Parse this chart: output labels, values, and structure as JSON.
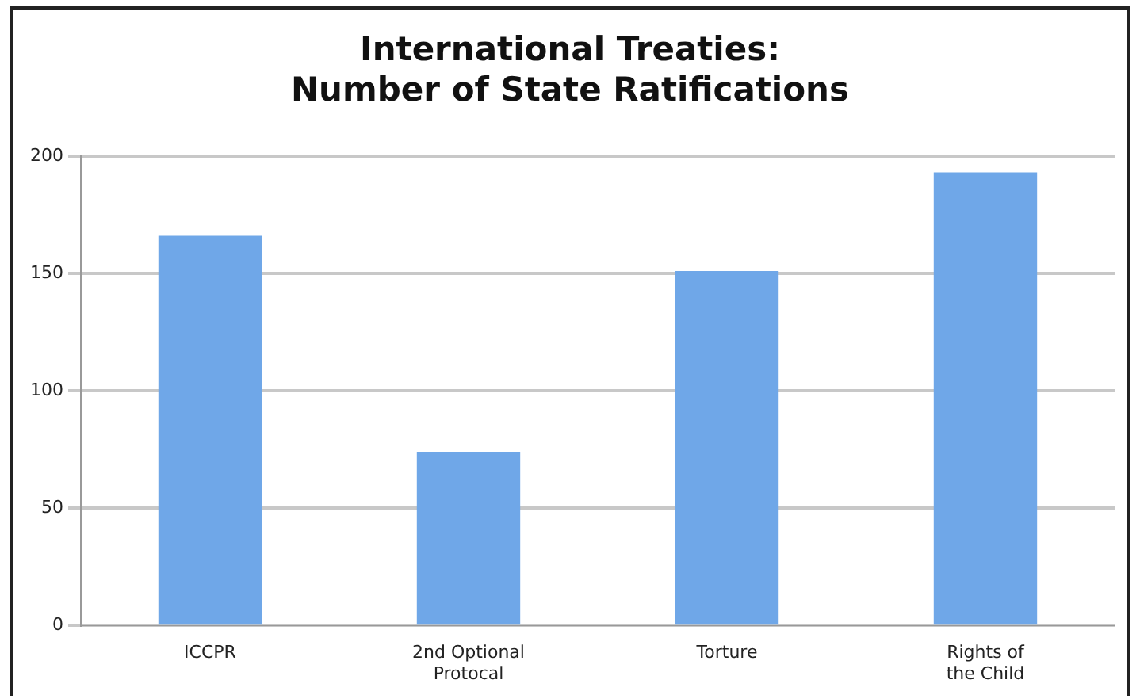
{
  "chart_data": {
    "type": "bar",
    "title": "International Treaties:\nNumber of State Ratifications",
    "categories": [
      "ICCPR",
      "2nd Optional Protocal",
      "Torture",
      "Rights of the Child"
    ],
    "values": [
      166,
      74,
      151,
      193
    ],
    "color": "#6fa7e8",
    "ylim": [
      0,
      200
    ],
    "yticks": [
      0,
      50,
      100,
      150,
      200
    ],
    "grid": "y",
    "legend": false
  }
}
